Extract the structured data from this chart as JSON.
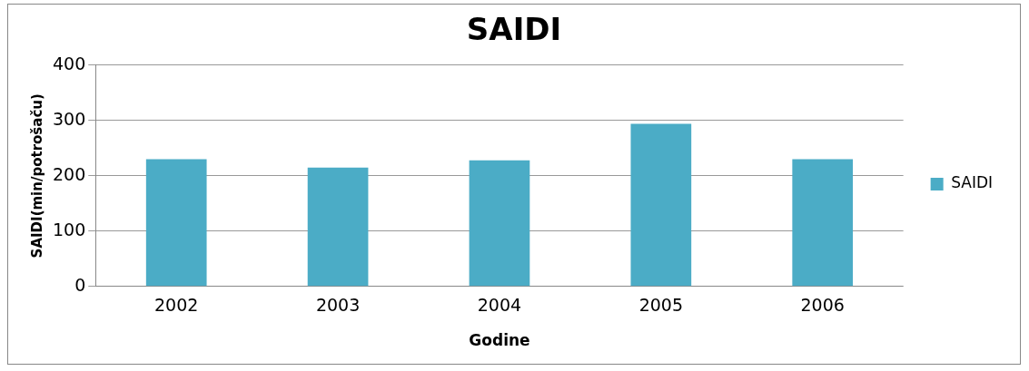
{
  "chart_data": {
    "type": "bar",
    "title": "SAIDI",
    "xlabel": "Godine",
    "ylabel": "SAIDI(min/potrošaču)",
    "categories": [
      "2002",
      "2003",
      "2004",
      "2005",
      "2006"
    ],
    "series": [
      {
        "name": "SAIDI",
        "color": "#4bacc6",
        "values": [
          230,
          215,
          228,
          294,
          230
        ]
      }
    ],
    "ylim": [
      0,
      400
    ],
    "yticks": [
      0,
      100,
      200,
      300,
      400
    ],
    "grid": "y",
    "legend": "right"
  }
}
